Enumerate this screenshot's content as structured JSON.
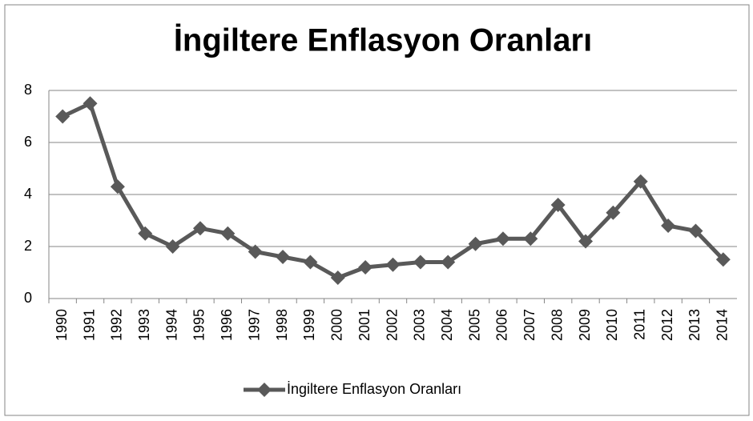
{
  "chart_data": {
    "type": "line",
    "title": "İngiltere Enflasyon Oranları",
    "categories": [
      "1990",
      "1991",
      "1992",
      "1993",
      "1994",
      "1995",
      "1996",
      "1997",
      "1998",
      "1999",
      "2000",
      "2001",
      "2002",
      "2003",
      "2004",
      "2005",
      "2006",
      "2007",
      "2008",
      "2009",
      "2010",
      "2011",
      "2012",
      "2013",
      "2014"
    ],
    "series": [
      {
        "name": "İngiltere Enflasyon Oranları",
        "color": "#595959",
        "values": [
          7.0,
          7.5,
          4.3,
          2.5,
          2.0,
          2.7,
          2.5,
          1.8,
          1.6,
          1.4,
          0.8,
          1.2,
          1.3,
          1.4,
          1.4,
          2.1,
          2.3,
          2.3,
          3.6,
          2.2,
          3.3,
          4.5,
          2.8,
          2.6,
          1.5
        ]
      }
    ],
    "ylim": [
      0,
      8
    ],
    "yticks": [
      0,
      2,
      4,
      6,
      8
    ],
    "grid": true,
    "legend": "bottom"
  }
}
